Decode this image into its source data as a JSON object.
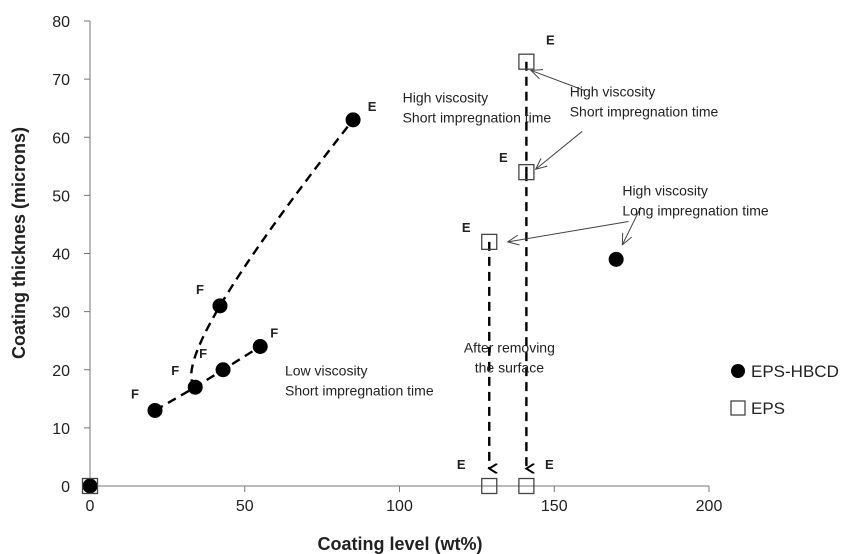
{
  "chart_data": {
    "type": "scatter",
    "title": "",
    "xlabel": "Coating level (wt%)",
    "ylabel": "Coating thicknes (microns)",
    "xlim": [
      0,
      200
    ],
    "ylim": [
      0,
      80
    ],
    "xticks": [
      0,
      50,
      100,
      150,
      200
    ],
    "yticks": [
      0,
      10,
      20,
      30,
      40,
      50,
      60,
      70,
      80
    ],
    "grid": false,
    "legend_position": "right",
    "series": [
      {
        "name": "EPS-HBCD",
        "marker": "filled-circle",
        "color": "#000000",
        "points": [
          {
            "x": 0,
            "y": 0,
            "label": ""
          },
          {
            "x": 21,
            "y": 13,
            "label": "F"
          },
          {
            "x": 34,
            "y": 17,
            "label": "F"
          },
          {
            "x": 42,
            "y": 31,
            "label": "F"
          },
          {
            "x": 43,
            "y": 20,
            "label": "F"
          },
          {
            "x": 55,
            "y": 24,
            "label": "F"
          },
          {
            "x": 85,
            "y": 63,
            "label": "E"
          },
          {
            "x": 170,
            "y": 39,
            "label": ""
          }
        ]
      },
      {
        "name": "EPS",
        "marker": "open-square",
        "color": "#000000",
        "points": [
          {
            "x": 0,
            "y": 0,
            "label": ""
          },
          {
            "x": 129,
            "y": 42,
            "label": "E"
          },
          {
            "x": 141,
            "y": 54,
            "label": "E"
          },
          {
            "x": 141,
            "y": 73,
            "label": "E"
          },
          {
            "x": 129,
            "y": 0,
            "label": "E"
          },
          {
            "x": 141,
            "y": 0,
            "label": "E"
          }
        ]
      }
    ],
    "dashed_curves": [
      {
        "from": [
          34,
          17
        ],
        "via": [
          42,
          31
        ],
        "to": [
          85,
          63
        ]
      },
      {
        "points": [
          [
            21,
            13
          ],
          [
            34,
            17
          ],
          [
            43,
            20
          ],
          [
            55,
            24
          ]
        ]
      },
      {
        "points": [
          [
            141,
            73
          ],
          [
            141,
            54
          ]
        ]
      }
    ],
    "arrows": [
      {
        "from": [
          129,
          42
        ],
        "to": [
          129,
          3
        ],
        "style": "dashed-bold"
      },
      {
        "from": [
          141,
          54
        ],
        "to": [
          141,
          3
        ],
        "style": "dashed-bold"
      },
      {
        "from": [
          160,
          68
        ],
        "to": [
          142.5,
          71.5
        ],
        "style": "thin"
      },
      {
        "from": [
          159,
          61
        ],
        "to": [
          144,
          54.5
        ],
        "style": "thin"
      },
      {
        "from": [
          174,
          45.5
        ],
        "to": [
          135,
          42
        ],
        "style": "thin"
      },
      {
        "from": [
          178,
          48
        ],
        "to": [
          172,
          41.5
        ],
        "style": "thin"
      }
    ],
    "annotations": [
      {
        "lines": [
          "High viscosity",
          "Short impregnation time"
        ],
        "x": 101,
        "y": 66
      },
      {
        "lines": [
          "Low viscosity",
          "Short impregnation time"
        ],
        "x": 63,
        "y": 19
      },
      {
        "lines": [
          "High viscosity",
          "Short impregnation time"
        ],
        "x": 155,
        "y": 67
      },
      {
        "lines": [
          "High viscosity",
          "Long impregnation time"
        ],
        "x": 172,
        "y": 50
      },
      {
        "lines": [
          "After removing",
          "the surface"
        ],
        "x": 135.5,
        "y": 23
      }
    ]
  }
}
